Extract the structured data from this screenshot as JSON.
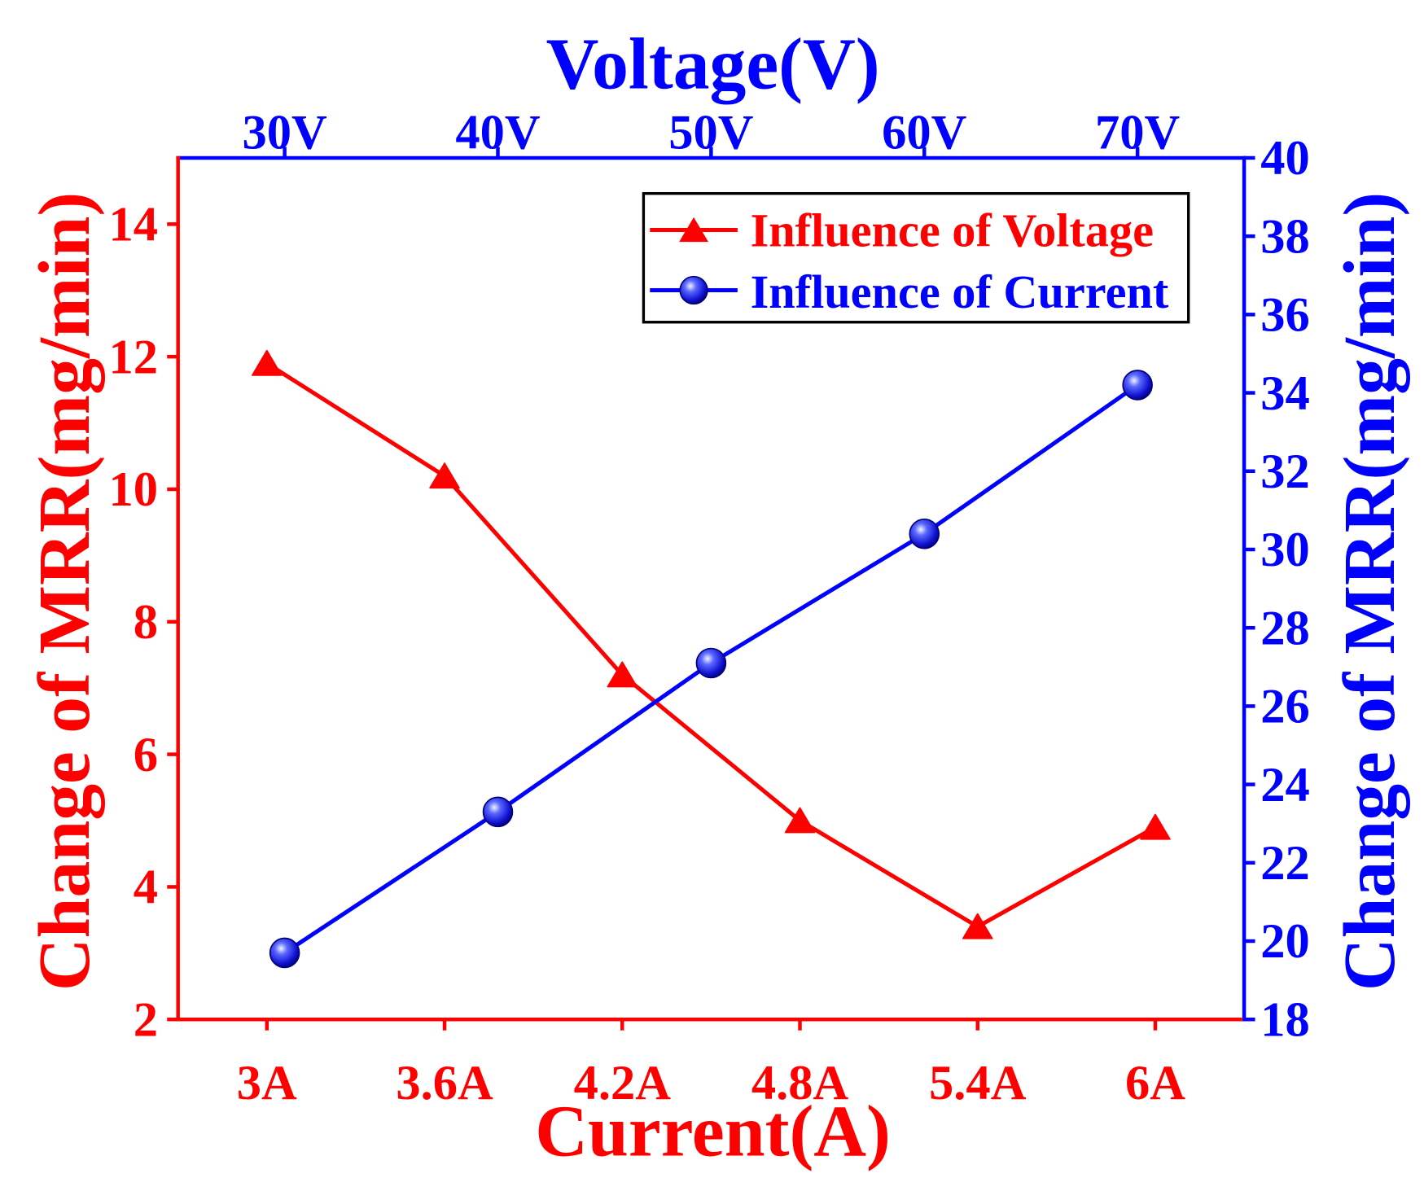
{
  "chart_data": {
    "type": "line",
    "x_bottom": {
      "label": "Current(A)",
      "values": [
        3,
        3.6,
        4.2,
        4.8,
        5.4,
        6
      ],
      "tick_labels": [
        "3A",
        "3.6A",
        "4.2A",
        "4.8A",
        "5.4A",
        "6A"
      ],
      "lim": [
        2.7,
        6.3
      ],
      "color": "#ff0000"
    },
    "x_top": {
      "label": "Voltage(V)",
      "values": [
        30,
        40,
        50,
        60,
        70
      ],
      "tick_labels": [
        "30V",
        "40V",
        "50V",
        "60V",
        "70V"
      ],
      "lim": [
        25,
        75
      ],
      "color": "#0000ff"
    },
    "y_left": {
      "label": "Change of MRR(mg/min)",
      "ticks": [
        2,
        4,
        6,
        8,
        10,
        12,
        14
      ],
      "lim": [
        2,
        15
      ],
      "color": "#ff0000"
    },
    "y_right": {
      "label": "Change of MRR(mg/min)",
      "ticks": [
        18,
        20,
        22,
        24,
        26,
        28,
        30,
        32,
        34,
        36,
        38,
        40
      ],
      "lim": [
        18,
        40
      ],
      "color": "#0000ff"
    },
    "series": [
      {
        "name": "Influence of Voltage",
        "color": "#ff0000",
        "marker": "triangle",
        "x": [
          3,
          3.6,
          4.2,
          4.8,
          5.4,
          6
        ],
        "y": [
          11.9,
          10.2,
          7.2,
          5.0,
          3.4,
          4.9
        ]
      },
      {
        "name": "Influence of Current",
        "color": "#0000ff",
        "marker": "circle",
        "x": [
          30,
          40,
          50,
          60,
          70
        ],
        "y": [
          19.7,
          23.3,
          27.1,
          30.4,
          34.2
        ]
      }
    ],
    "grid": false,
    "legend": {
      "location": "top-right"
    }
  }
}
